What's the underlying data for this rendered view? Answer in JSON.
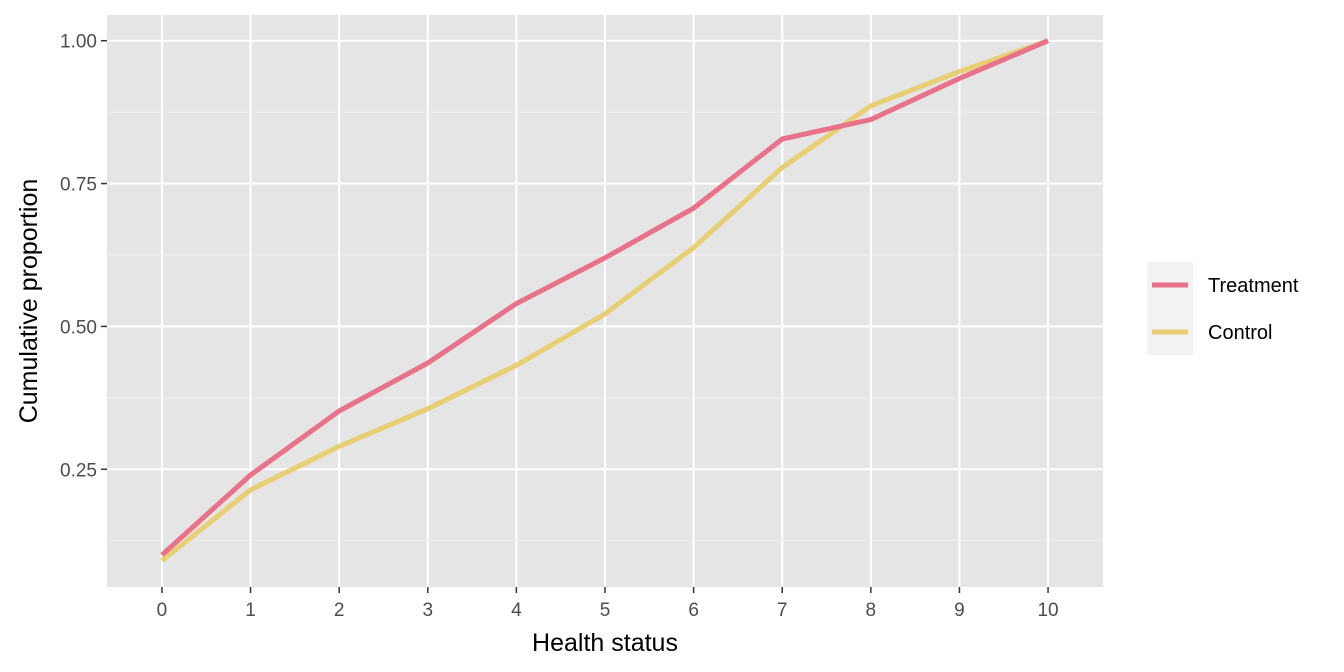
{
  "chart_data": {
    "type": "line",
    "xlabel": "Health status",
    "ylabel": "Cumulative proportion",
    "x": [
      0,
      1,
      2,
      3,
      4,
      5,
      6,
      7,
      8,
      9,
      10
    ],
    "x_ticks": [
      "0",
      "1",
      "2",
      "3",
      "4",
      "5",
      "6",
      "7",
      "8",
      "9",
      "10"
    ],
    "y_ticks": [
      0.25,
      0.5,
      0.75,
      1.0
    ],
    "y_tick_labels": [
      "0.25",
      "0.50",
      "0.75",
      "1.00"
    ],
    "xlim": [
      -0.62,
      10.62
    ],
    "ylim": [
      0.044,
      1.045
    ],
    "grid": true,
    "legend_position": "right",
    "panel_color": "#e5e5e5",
    "series": [
      {
        "name": "Treatment",
        "color": "#e8728a",
        "values": [
          0.1,
          0.24,
          0.352,
          0.436,
          0.54,
          0.62,
          0.707,
          0.828,
          0.862,
          0.934,
          1.0
        ]
      },
      {
        "name": "Control",
        "color": "#e8cf74",
        "values": [
          0.09,
          0.214,
          0.29,
          0.356,
          0.432,
          0.522,
          0.638,
          0.778,
          0.886,
          0.946,
          1.0
        ]
      }
    ]
  }
}
